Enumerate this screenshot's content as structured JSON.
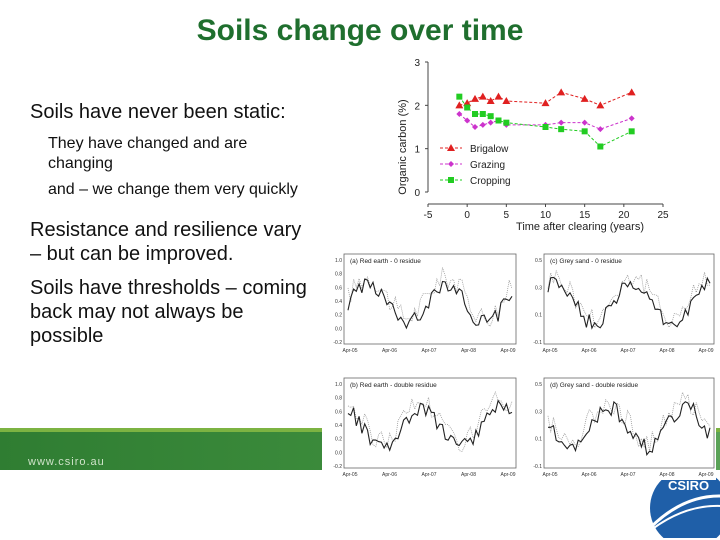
{
  "slide": {
    "title": "Soils change over time",
    "bullets": [
      {
        "level": 1,
        "text": "Soils have never been static:"
      },
      {
        "level": 2,
        "text": "They have changed and are changing"
      },
      {
        "level": 2,
        "text": "and – we change them very quickly"
      },
      {
        "level": 1,
        "text": "Resistance and resilience vary – but can be improved."
      },
      {
        "level": 1,
        "text": "Soils have thresholds – coming back may not always be possible"
      }
    ],
    "footer_url": "www.csiro.au",
    "logo_text": "CSIRO"
  },
  "colors": {
    "title": "#1f6f2e",
    "brigalow": "#e02020",
    "grazing": "#cc33cc",
    "cropping": "#22cc22",
    "footer": "#2f7d32"
  },
  "chart_data": [
    {
      "type": "line",
      "title": "",
      "xlabel": "Time after clearing (years)",
      "ylabel": "Organic carbon (%)",
      "xlim": [
        -5,
        25
      ],
      "ylim": [
        0,
        3
      ],
      "xticks": [
        -5,
        0,
        5,
        10,
        15,
        20,
        25
      ],
      "yticks": [
        0,
        1,
        2,
        3
      ],
      "legend": "center-right",
      "series": [
        {
          "name": "Brigalow",
          "marker": "triangle",
          "color": "#e02020",
          "x": [
            -1,
            0,
            1,
            2,
            3,
            4,
            5,
            10,
            12,
            15,
            17,
            21
          ],
          "y": [
            2.0,
            2.05,
            2.15,
            2.2,
            2.1,
            2.2,
            2.1,
            2.05,
            2.3,
            2.15,
            2.0,
            2.3
          ]
        },
        {
          "name": "Grazing",
          "marker": "diamond",
          "color": "#cc33cc",
          "x": [
            -1,
            0,
            1,
            2,
            3,
            4,
            5,
            10,
            12,
            15,
            17,
            21
          ],
          "y": [
            1.8,
            1.65,
            1.5,
            1.55,
            1.6,
            1.65,
            1.55,
            1.55,
            1.6,
            1.6,
            1.45,
            1.7
          ]
        },
        {
          "name": "Cropping",
          "marker": "square",
          "color": "#22cc22",
          "x": [
            -1,
            0,
            1,
            2,
            3,
            4,
            5,
            10,
            12,
            15,
            17,
            21
          ],
          "y": [
            2.2,
            1.95,
            1.8,
            1.8,
            1.75,
            1.65,
            1.6,
            1.5,
            1.45,
            1.4,
            1.05,
            1.4
          ]
        }
      ]
    },
    {
      "type": "line",
      "panels": [
        {
          "label": "(a) Red earth - 0 residue",
          "yticks": [
            "-0.2",
            "0.0",
            "0.2",
            "0.4",
            "0.6",
            "0.8",
            "1.0"
          ],
          "xticks": [
            "Apr-05",
            "Apr-06",
            "Apr-07",
            "Apr-08",
            "Apr-09"
          ]
        },
        {
          "label": "(c) Grey sand - 0 residue",
          "yticks": [
            "-0.1",
            "0.1",
            "0.3",
            "0.5"
          ],
          "xticks": [
            "Apr-05",
            "Apr-06",
            "Apr-07",
            "Apr-08",
            "Apr-09"
          ]
        },
        {
          "label": "(b) Red earth - double residue",
          "yticks": [
            "-0.2",
            "0.0",
            "0.2",
            "0.4",
            "0.6",
            "0.8",
            "1.0"
          ],
          "xticks": [
            "Apr-05",
            "Apr-06",
            "Apr-07",
            "Apr-08",
            "Apr-09"
          ]
        },
        {
          "label": "(d) Grey sand - double residue",
          "yticks": [
            "-0.1",
            "0.1",
            "0.3",
            "0.5"
          ],
          "xticks": [
            "Apr-05",
            "Apr-06",
            "Apr-07",
            "Apr-08",
            "Apr-09"
          ]
        }
      ]
    }
  ]
}
